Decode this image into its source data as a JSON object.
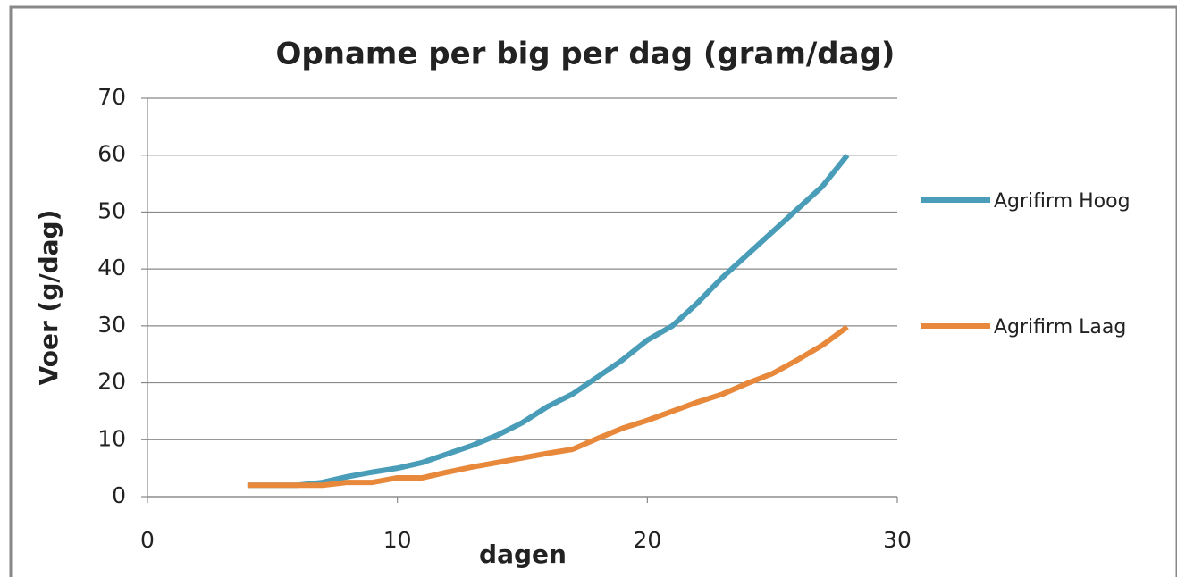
{
  "chart_data": {
    "type": "line",
    "title": "Opname per big per dag (gram/dag)",
    "x_label": "dagen",
    "y_label": "Voer (g/dag)",
    "x": [
      4,
      5,
      6,
      7,
      8,
      9,
      10,
      11,
      12,
      13,
      14,
      15,
      16,
      17,
      18,
      19,
      20,
      21,
      22,
      23,
      24,
      25,
      26,
      27,
      28
    ],
    "series": [
      {
        "name": "Agrifirm Hoog",
        "color": "#4a9db8",
        "values": [
          2,
          2,
          2,
          2.5,
          3.5,
          4.3,
          5,
          6,
          7.5,
          9,
          10.8,
          13,
          15.8,
          18,
          21,
          24,
          27.5,
          30,
          34,
          38.5,
          42.5,
          46.5,
          50.5,
          54.5,
          60
        ]
      },
      {
        "name": "Agrifirm Laag",
        "color": "#e8883b",
        "values": [
          2,
          2,
          2,
          2,
          2.5,
          2.5,
          3.3,
          3.3,
          4.3,
          5.2,
          6,
          6.8,
          7.6,
          8.3,
          10.2,
          12,
          13.4,
          15,
          16.6,
          18,
          19.9,
          21.6,
          24,
          26.6,
          29.8
        ]
      }
    ],
    "xlim": [
      0,
      30
    ],
    "xticks": [
      0,
      10,
      20,
      30
    ],
    "ylim": [
      0,
      70
    ],
    "yticks": [
      0,
      10,
      20,
      30,
      40,
      50,
      60,
      70
    ],
    "grid": true,
    "legend": "right"
  }
}
